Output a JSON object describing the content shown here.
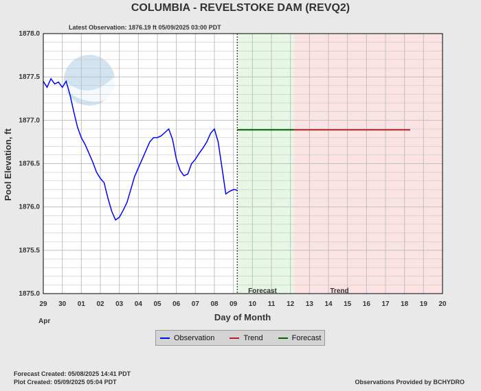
{
  "header": {
    "title": "COLUMBIA - REVELSTOKE DAM  (REVQ2)",
    "latest_observation": "Latest Observation:  1876.19 ft 05/09/2025 03:00 PDT"
  },
  "footer": {
    "forecast_created": "Forecast Created: 05/08/2025 14:41 PDT",
    "plot_created": "Plot Created: 05/09/2025 05:04 PDT",
    "provider": "Observations Provided by BCHYDRO"
  },
  "legend": [
    {
      "label": "Observation",
      "color": "#0000ff"
    },
    {
      "label": "Trend",
      "color": "#b22222"
    },
    {
      "label": "Forecast",
      "color": "#006400"
    }
  ],
  "colors": {
    "plot_background": "#ffffff",
    "forecast_region": "#e6f7e6",
    "trend_region": "#fbe3e3",
    "grid": "#bfbfbf",
    "observation": "#0000ff",
    "forecast": "#006400",
    "trend": "#b22222"
  },
  "chart_data": {
    "type": "line",
    "xlabel": "Day of Month",
    "ylabel": "Pool Elevation, ft",
    "month_label": "Apr",
    "x_ticks": [
      "29",
      "30",
      "01",
      "02",
      "03",
      "04",
      "05",
      "06",
      "07",
      "08",
      "09",
      "10",
      "11",
      "12",
      "13",
      "14",
      "15",
      "16",
      "17",
      "18",
      "19",
      "20"
    ],
    "ylim": [
      1875.0,
      1878.0
    ],
    "y_ticks": [
      "1875.0",
      "1875.5",
      "1876.0",
      "1876.5",
      "1877.0",
      "1877.5",
      "1878.0"
    ],
    "region_labels": {
      "forecast": "Forecast",
      "trend": "Trend"
    },
    "regions": {
      "forecast": {
        "x_start": 10.2,
        "x_end": 13.2
      },
      "trend": {
        "x_start": 13.2,
        "x_end": 21.0
      }
    },
    "observation_time_x": 10.2,
    "series": [
      {
        "name": "Observation",
        "x": [
          0.0,
          0.2,
          0.4,
          0.6,
          0.8,
          1.0,
          1.2,
          1.4,
          1.6,
          1.8,
          2.0,
          2.2,
          2.4,
          2.6,
          2.8,
          3.0,
          3.2,
          3.4,
          3.6,
          3.8,
          4.0,
          4.2,
          4.4,
          4.6,
          4.8,
          5.0,
          5.2,
          5.4,
          5.6,
          5.8,
          6.0,
          6.2,
          6.4,
          6.6,
          6.8,
          7.0,
          7.2,
          7.4,
          7.6,
          7.8,
          8.0,
          8.2,
          8.4,
          8.6,
          8.8,
          9.0,
          9.2,
          9.4,
          9.6,
          9.8,
          10.0,
          10.1,
          10.2
        ],
        "values": [
          1877.45,
          1877.38,
          1877.48,
          1877.42,
          1877.44,
          1877.38,
          1877.45,
          1877.3,
          1877.1,
          1876.92,
          1876.8,
          1876.72,
          1876.62,
          1876.52,
          1876.4,
          1876.33,
          1876.28,
          1876.1,
          1875.95,
          1875.85,
          1875.88,
          1875.96,
          1876.05,
          1876.2,
          1876.35,
          1876.45,
          1876.55,
          1876.65,
          1876.75,
          1876.8,
          1876.8,
          1876.82,
          1876.86,
          1876.9,
          1876.78,
          1876.55,
          1876.42,
          1876.36,
          1876.38,
          1876.5,
          1876.55,
          1876.62,
          1876.68,
          1876.75,
          1876.85,
          1876.9,
          1876.75,
          1876.45,
          1876.15,
          1876.18,
          1876.2,
          1876.2,
          1876.19
        ]
      },
      {
        "name": "Forecast",
        "x": [
          10.2,
          13.2
        ],
        "values": [
          1876.89,
          1876.89
        ]
      },
      {
        "name": "Trend",
        "x": [
          13.2,
          19.3
        ],
        "values": [
          1876.89,
          1876.89
        ]
      }
    ]
  }
}
